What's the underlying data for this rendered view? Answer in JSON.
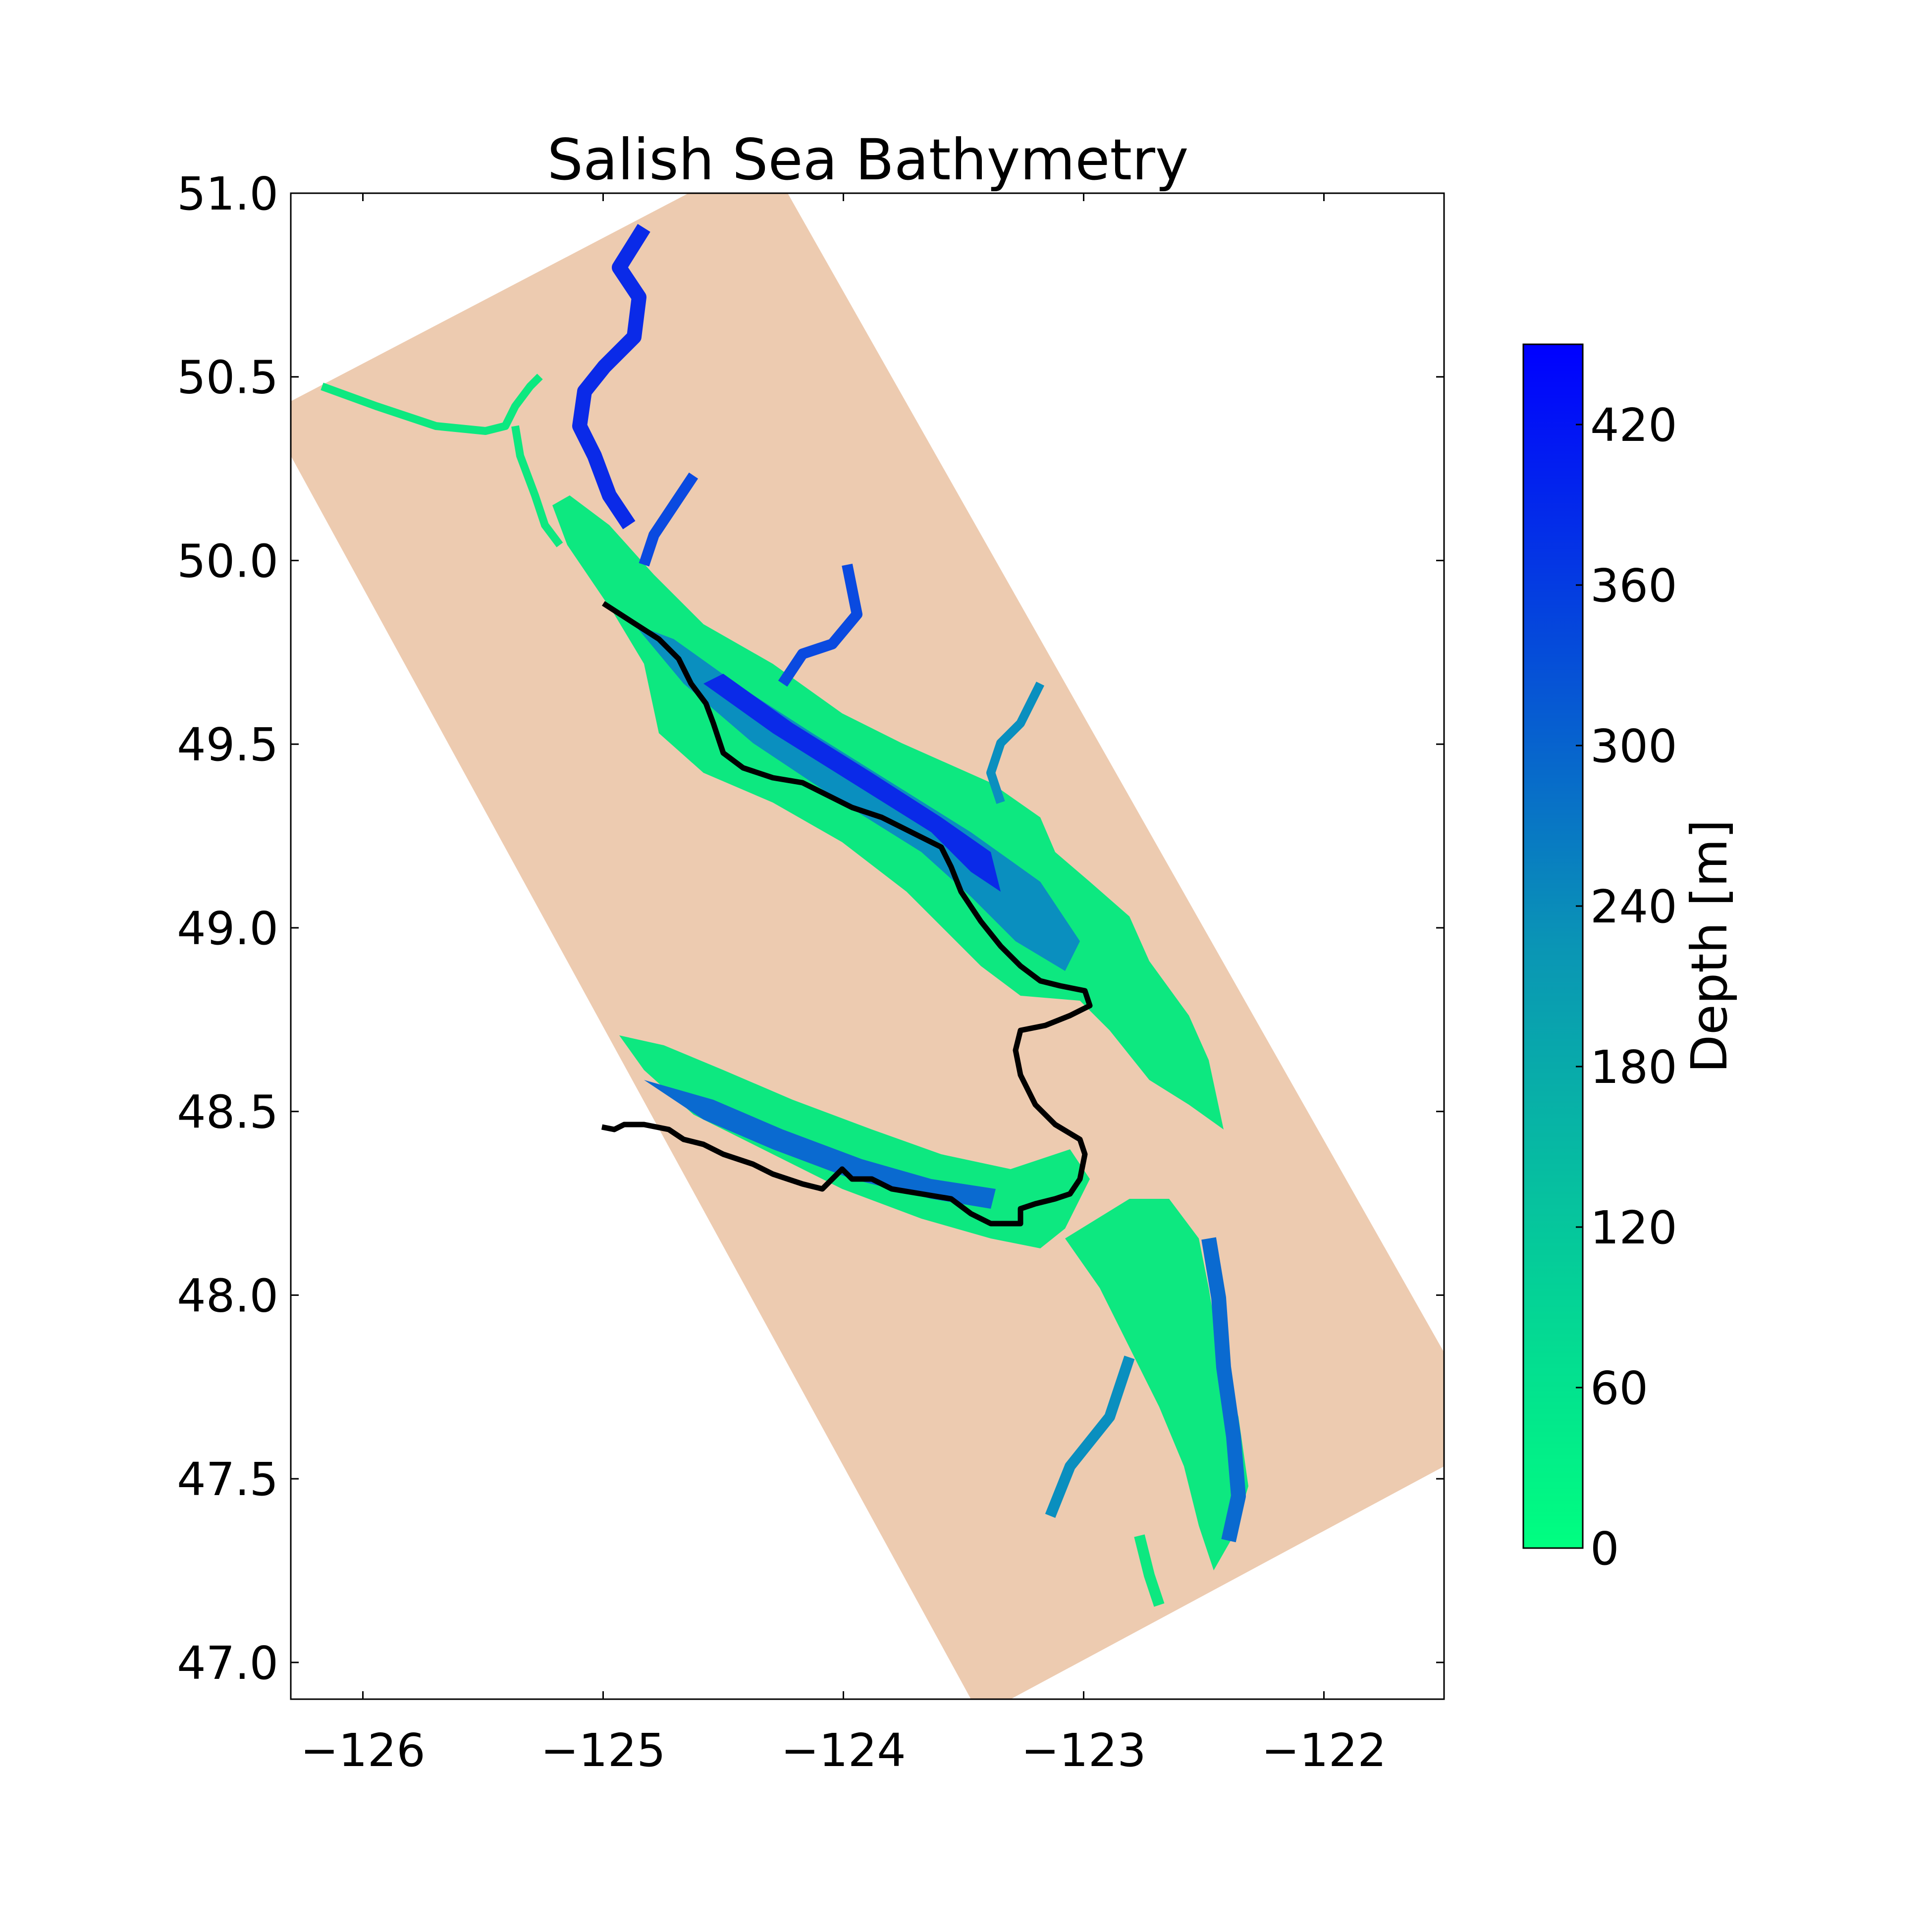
{
  "map": {
    "title": "Salish Sea Bathymetry",
    "x_ticks": [
      "−126",
      "−125",
      "−124",
      "−123",
      "−122"
    ],
    "x_tick_values": [
      -126,
      -125,
      -124,
      -123,
      -122
    ],
    "y_ticks": [
      "47.0",
      "47.5",
      "48.0",
      "48.5",
      "49.0",
      "49.5",
      "50.0",
      "50.5",
      "51.0"
    ],
    "y_tick_values": [
      47.0,
      47.5,
      48.0,
      48.5,
      49.0,
      49.5,
      50.0,
      50.5,
      51.0
    ],
    "xlim": [
      -126.3,
      -121.5
    ],
    "ylim": [
      46.9,
      51.0
    ]
  },
  "colorbar": {
    "label": "Depth [m]",
    "ticks": [
      "0",
      "60",
      "120",
      "180",
      "240",
      "300",
      "360",
      "420"
    ],
    "tick_values": [
      0,
      60,
      120,
      180,
      240,
      300,
      360,
      420
    ],
    "range": [
      0,
      450
    ],
    "color_low": "#00ff80",
    "color_high": "#0000ff"
  },
  "colors": {
    "land": "#edcbb0",
    "shallow_water": "#0de880",
    "mid_water": "#0a8fbf",
    "deep_water": "#0a2ae8",
    "transect_line": "#000000"
  }
}
